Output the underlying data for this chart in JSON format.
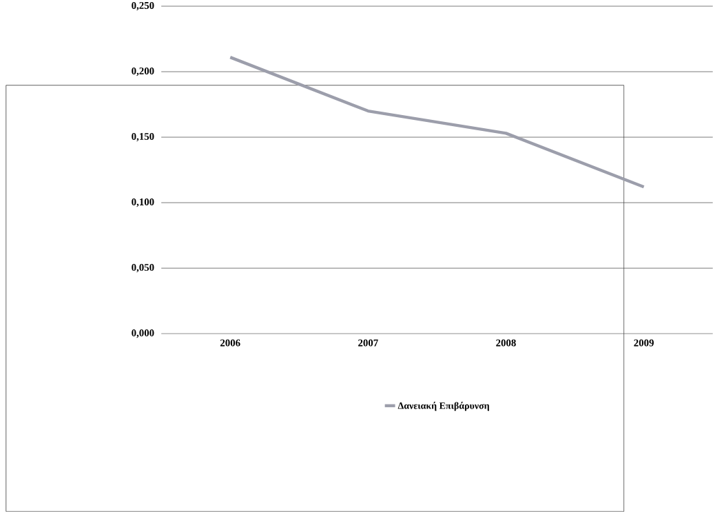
{
  "chart_data": {
    "type": "line",
    "categories": [
      "2006",
      "2007",
      "2008",
      "2009"
    ],
    "series": [
      {
        "name": "Δανειακή Επιβάρυνση",
        "color": "#9c9eab",
        "values": [
          0.211,
          0.17,
          0.153,
          0.112
        ]
      }
    ],
    "ylim": [
      0,
      0.25
    ],
    "yticks": [
      {
        "value": 0,
        "label": "0,000"
      },
      {
        "value": 0.05,
        "label": "0,050"
      },
      {
        "value": 0.1,
        "label": "0,100"
      },
      {
        "value": 0.15,
        "label": "0,150"
      },
      {
        "value": 0.2,
        "label": "0,200"
      },
      {
        "value": 0.25,
        "label": "0,250"
      }
    ],
    "grid": "y",
    "legend": "bottom",
    "marker": "none",
    "line_style": "solid"
  }
}
